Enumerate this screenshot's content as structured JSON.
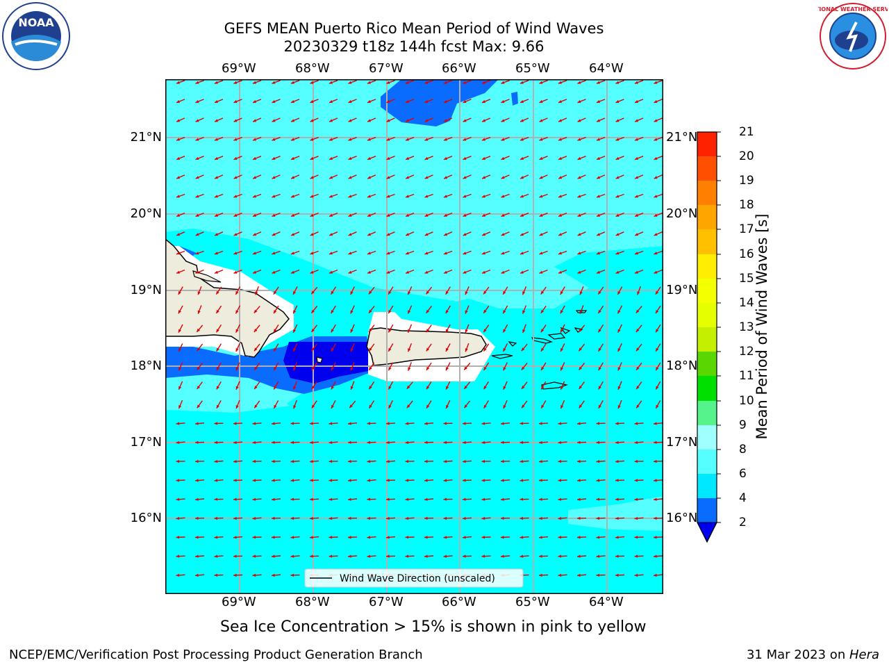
{
  "header": {
    "title_line1": "GEFS MEAN Puerto Rico Mean Period of Wind Waves",
    "title_line2": "20230329 t18z 144h fcst   Max: 9.66",
    "noaa_logo_text": "NOAA",
    "nws_logo_text": "NATIONAL WEATHER SERVICE"
  },
  "map": {
    "lon_labels": [
      "69°W",
      "68°W",
      "67°W",
      "66°W",
      "65°W",
      "64°W"
    ],
    "lat_labels": [
      "21°N",
      "20°N",
      "19°N",
      "18°N",
      "17°N",
      "16°N"
    ],
    "legend_label": "Wind Wave Direction (unscaled)",
    "note": "Sea Ice Concentration > 15% is shown in pink to yellow",
    "land_color": "#eeecdc",
    "arrow_color": "#e00000",
    "ocean_main_color": "#00ffff"
  },
  "colorbar": {
    "title": "Mean Period of Wind Waves [s]",
    "labels": [
      "21",
      "20",
      "19",
      "18",
      "17",
      "16",
      "15",
      "14",
      "13",
      "12",
      "11",
      "10",
      "9",
      "8",
      "6",
      "4",
      "2"
    ],
    "bands": [
      {
        "from": 2,
        "to": 4,
        "color": "#0a6cff"
      },
      {
        "from": 4,
        "to": 6,
        "color": "#00e8ff"
      },
      {
        "from": 6,
        "to": 8,
        "color": "#55ffff"
      },
      {
        "from": 8,
        "to": 9,
        "color": "#a0ffff"
      },
      {
        "from": 9,
        "to": 10,
        "color": "#56f28c"
      },
      {
        "from": 10,
        "to": 11,
        "color": "#00e000"
      },
      {
        "from": 11,
        "to": 12,
        "color": "#5ad700"
      },
      {
        "from": 12,
        "to": 13,
        "color": "#c4f000"
      },
      {
        "from": 13,
        "to": 14,
        "color": "#e5ff00"
      },
      {
        "from": 14,
        "to": 15,
        "color": "#f4ff00"
      },
      {
        "from": 15,
        "to": 16,
        "color": "#ffee00"
      },
      {
        "from": 16,
        "to": 17,
        "color": "#ffc000"
      },
      {
        "from": 17,
        "to": 18,
        "color": "#ffa500"
      },
      {
        "from": 18,
        "to": 19,
        "color": "#ff8000"
      },
      {
        "from": 19,
        "to": 20,
        "color": "#ff5000"
      },
      {
        "from": 20,
        "to": 21,
        "color": "#ff2200"
      }
    ],
    "extend_color": "#0000ee"
  },
  "footer": {
    "left": "NCEP/EMC/Verification Post Processing Product Generation Branch",
    "right_date": "31 Mar 2023 on ",
    "right_host": "Hera"
  }
}
